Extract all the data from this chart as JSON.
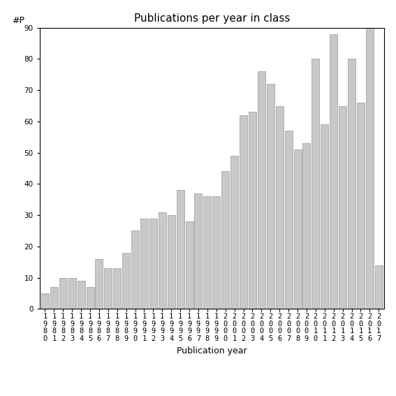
{
  "title": "Publications per year in class",
  "xlabel": "Publication year",
  "ylabel": "#P",
  "years": [
    "1980",
    "1981",
    "1982",
    "1983",
    "1984",
    "1985",
    "1986",
    "1987",
    "1988",
    "1989",
    "1990",
    "1991",
    "1992",
    "1993",
    "1994",
    "1995",
    "1996",
    "1997",
    "1998",
    "1999",
    "2000",
    "2001",
    "2002",
    "2003",
    "2004",
    "2005",
    "2006",
    "2007",
    "2008",
    "2009",
    "2010",
    "2011",
    "2012",
    "2013",
    "2014",
    "2015",
    "2016",
    "2017"
  ],
  "values": [
    5,
    7,
    10,
    10,
    9,
    7,
    16,
    13,
    13,
    18,
    25,
    29,
    29,
    31,
    30,
    38,
    28,
    37,
    36,
    36,
    44,
    49,
    62,
    63,
    76,
    72,
    65,
    57,
    51,
    53,
    80,
    59,
    88,
    65,
    80,
    66,
    90,
    14
  ],
  "bar_color": "#c8c8c8",
  "bar_edge_color": "#999999",
  "ylim": [
    0,
    90
  ],
  "yticks": [
    0,
    10,
    20,
    30,
    40,
    50,
    60,
    70,
    80,
    90
  ],
  "bg_color": "#ffffff",
  "title_fontsize": 11,
  "label_fontsize": 9,
  "tick_fontsize": 7.5
}
